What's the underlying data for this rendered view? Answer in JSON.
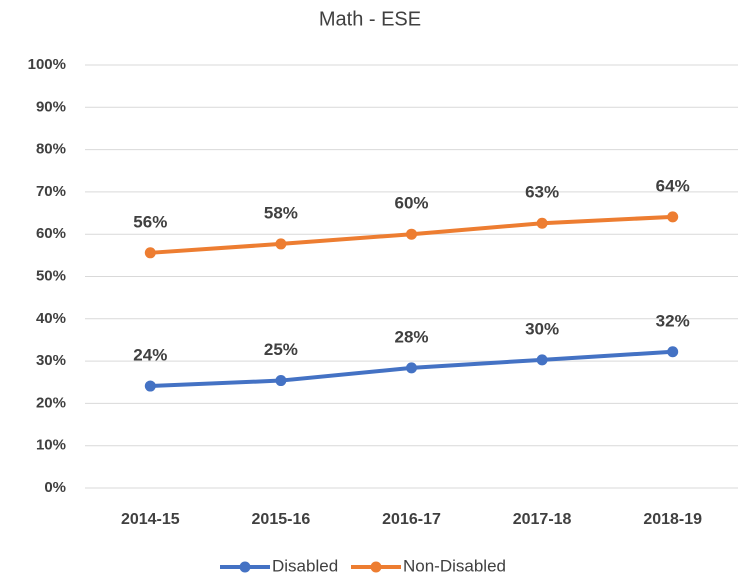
{
  "chart_data": {
    "type": "line",
    "title": "Math - ESE",
    "categories": [
      "2014-15",
      "2015-16",
      "2016-17",
      "2017-18",
      "2018-19"
    ],
    "series": [
      {
        "name": "Disabled",
        "color": "#4472c4",
        "values": [
          24.1,
          25.4,
          28.4,
          30.3,
          32.2
        ],
        "value_labels": [
          "24%",
          "25%",
          "28%",
          "30%",
          "32%"
        ]
      },
      {
        "name": "Non-Disabled",
        "color": "#ed7d31",
        "values": [
          55.6,
          57.7,
          60,
          62.6,
          64.1
        ],
        "value_labels": [
          "56%",
          "58%",
          "60%",
          "63%",
          "64%"
        ]
      }
    ],
    "ylim": [
      0,
      100
    ],
    "yticks": [
      {
        "value": 0,
        "label": "0%"
      },
      {
        "value": 10,
        "label": "10%"
      },
      {
        "value": 20,
        "label": "20%"
      },
      {
        "value": 30,
        "label": "30%"
      },
      {
        "value": 40,
        "label": "40%"
      },
      {
        "value": 50,
        "label": "50%"
      },
      {
        "value": 60,
        "label": "60%"
      },
      {
        "value": 70,
        "label": "70%"
      },
      {
        "value": 80,
        "label": "80%"
      },
      {
        "value": 90,
        "label": "90%"
      },
      {
        "value": 100,
        "label": "100%"
      }
    ],
    "grid": true,
    "legend": "bottom"
  }
}
